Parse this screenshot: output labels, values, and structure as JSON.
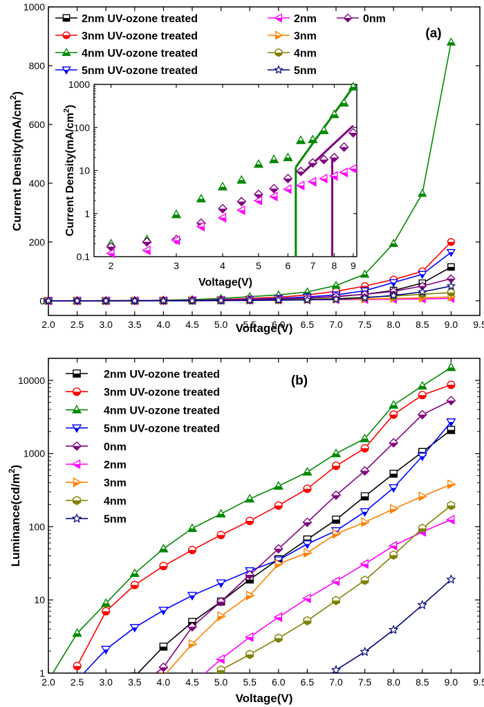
{
  "chart_data": [
    {
      "type": "line",
      "panel_label": "(a)",
      "xlabel": "Voltage(V)",
      "ylabel": "Current Density(mA/cm²)",
      "xlim": [
        2.0,
        9.5
      ],
      "ylim": [
        -50,
        1000
      ],
      "xticks": [
        "2.0",
        "2.5",
        "3.0",
        "3.5",
        "4.0",
        "4.5",
        "5.0",
        "5.5",
        "6.0",
        "6.5",
        "7.0",
        "7.5",
        "8.0",
        "8.5",
        "9.0",
        "9.5"
      ],
      "yticks": [
        "0",
        "200",
        "400",
        "600",
        "800",
        "1000"
      ],
      "grid": false,
      "legend_position": "top",
      "x": [
        2.0,
        2.5,
        3.0,
        3.5,
        4.0,
        4.5,
        5.0,
        5.5,
        6.0,
        6.5,
        7.0,
        7.5,
        8.0,
        8.5,
        9.0
      ],
      "series": [
        {
          "name": "2nm UV-ozone treated",
          "color": "#000000",
          "marker": "square-half",
          "values": [
            0,
            0,
            0,
            0,
            0.3,
            0.8,
            1.5,
            3,
            5,
            9,
            14,
            22,
            35,
            60,
            115
          ]
        },
        {
          "name": "3nm UV-ozone treated",
          "color": "#ff0000",
          "marker": "circle-half",
          "values": [
            0,
            0,
            0,
            0.3,
            1,
            2,
            4,
            8,
            12,
            20,
            32,
            50,
            72,
            100,
            200
          ]
        },
        {
          "name": "4nm UV-ozone treated",
          "color": "#008800",
          "marker": "triangle-up-half",
          "values": [
            0,
            0,
            0.1,
            0.5,
            2,
            4,
            8,
            14,
            20,
            30,
            52,
            90,
            195,
            365,
            880
          ]
        },
        {
          "name": "5nm UV-ozone treated",
          "color": "#0000ff",
          "marker": "triangle-down-half",
          "values": [
            0,
            0,
            0,
            0.2,
            0.6,
            1.5,
            3,
            5,
            8,
            13,
            20,
            34,
            62,
            90,
            165
          ]
        },
        {
          "name": "2nm",
          "color": "#ff00ff",
          "marker": "triangle-left-half",
          "values": [
            0,
            0,
            0,
            0.2,
            0.6,
            1,
            1.5,
            2,
            3,
            3.5,
            4,
            4.5,
            5,
            6,
            8
          ]
        },
        {
          "name": "3nm",
          "color": "#ff8000",
          "marker": "triangle-right-half",
          "values": [
            0,
            0,
            0,
            0,
            0.5,
            1,
            1.5,
            2,
            3,
            4,
            5,
            6,
            8,
            10,
            13
          ]
        },
        {
          "name": "4nm",
          "color": "#808000",
          "marker": "hexagon-half",
          "values": [
            0,
            0,
            0,
            0,
            0.2,
            0.5,
            1,
            2,
            3,
            5,
            8,
            12,
            16,
            22,
            28
          ]
        },
        {
          "name": "0nm",
          "color": "#800080",
          "marker": "diamond-half",
          "values": [
            0,
            0,
            0,
            0.3,
            0.8,
            1.5,
            2.5,
            4,
            6,
            9,
            15,
            22,
            32,
            50,
            75
          ]
        },
        {
          "name": "5nm",
          "color": "#000080",
          "marker": "star",
          "values": [
            0,
            0,
            0,
            0,
            0,
            0,
            0.5,
            1,
            2,
            3,
            5,
            10,
            18,
            30,
            50
          ]
        }
      ],
      "inset": {
        "xlabel": "Voltage(V)",
        "ylabel": "Current Density(mA/cm²)",
        "x_scale": "log",
        "y_scale": "log",
        "xlim": [
          1.8,
          9.2
        ],
        "ylim": [
          0.1,
          1000
        ],
        "xticks": [
          "2",
          "3",
          "4",
          "5",
          "6",
          "7",
          "8",
          "9"
        ],
        "yticks": [
          "0.1",
          "1",
          "10",
          "100",
          "1000"
        ],
        "series": [
          {
            "name": "4nm UV-ozone treated",
            "color": "#008800",
            "marker": "triangle-up-half",
            "x": [
              2.0,
              2.5,
              3.0,
              3.5,
              4.0,
              4.5,
              5.0,
              5.5,
              6.0,
              6.5,
              7.0,
              7.5,
              8.0,
              8.5,
              9.0
            ],
            "values": [
              0.2,
              0.25,
              0.95,
              2.2,
              4.2,
              6.0,
              14,
              18,
              20,
              50,
              52,
              85,
              200,
              370,
              880
            ]
          },
          {
            "name": "0nm",
            "color": "#800080",
            "marker": "diamond-half",
            "x": [
              2.0,
              2.5,
              3.0,
              3.5,
              4.0,
              4.5,
              5.0,
              5.5,
              6.0,
              6.5,
              7.0,
              7.5,
              8.0,
              8.5,
              9.0
            ],
            "values": [
              0.17,
              0.22,
              0.25,
              0.6,
              1.3,
              1.9,
              2.8,
              3.8,
              6.5,
              9.5,
              15,
              18,
              20,
              35,
              75
            ]
          },
          {
            "name": "2nm",
            "color": "#ff00ff",
            "marker": "triangle-left-half",
            "x": [
              2.0,
              2.5,
              3.0,
              3.5,
              4.0,
              4.5,
              5.0,
              5.5,
              6.0,
              6.5,
              7.0,
              7.5,
              8.0,
              8.5,
              9.0
            ],
            "values": [
              0.12,
              0.14,
              0.24,
              0.5,
              0.8,
              1.2,
              2.0,
              2.5,
              3.7,
              4.5,
              5.5,
              6.5,
              7.5,
              9,
              11
            ]
          }
        ],
        "fit_lines": [
          {
            "color": "#008800",
            "x": [
              6.3,
              9.1
            ],
            "values": [
              12,
              1000
            ]
          },
          {
            "color": "#800080",
            "x": [
              6.5,
              9.0
            ],
            "values": [
              8,
              110
            ]
          }
        ],
        "drop_lines": [
          {
            "color": "#008800",
            "x": 6.3
          },
          {
            "color": "#800080",
            "x": 7.9
          }
        ]
      }
    },
    {
      "type": "line",
      "panel_label": "(b)",
      "xlabel": "Voltage(V)",
      "ylabel": "Luminance(cd/m²)",
      "y_scale": "log",
      "xlim": [
        2.0,
        9.5
      ],
      "ylim": [
        1,
        20000
      ],
      "xticks": [
        "2.0",
        "2.5",
        "3.0",
        "3.5",
        "4.0",
        "4.5",
        "5.0",
        "5.5",
        "6.0",
        "6.5",
        "7.0",
        "7.5",
        "8.0",
        "8.5",
        "9.0",
        "9.5"
      ],
      "yticks": [
        "1",
        "10",
        "100",
        "1000",
        "10000"
      ],
      "grid": false,
      "legend_position": "top-left",
      "series": [
        {
          "name": "2nm UV-ozone treated",
          "color": "#000000",
          "marker": "square-half",
          "x": [
            3.5,
            4.0,
            4.5,
            5.0,
            5.5,
            6.0,
            6.5,
            7.0,
            7.5,
            8.0,
            8.5,
            9.0
          ],
          "values": [
            0.9,
            2.3,
            5,
            9.5,
            19,
            36,
            67,
            125,
            260,
            530,
            1050,
            2100
          ]
        },
        {
          "name": "3nm UV-ozone treated",
          "color": "#ff0000",
          "marker": "circle-half",
          "x": [
            2.5,
            3.0,
            3.5,
            4.0,
            4.5,
            5.0,
            5.5,
            6.0,
            6.5,
            7.0,
            7.5,
            8.0,
            8.5,
            9.0
          ],
          "values": [
            1.25,
            7,
            16,
            29,
            48,
            77,
            120,
            195,
            330,
            680,
            1180,
            3400,
            6300,
            8700
          ]
        },
        {
          "name": "4nm UV-ozone treated",
          "color": "#008800",
          "marker": "triangle-up-half",
          "x": [
            2.0,
            2.5,
            3.0,
            3.5,
            4.0,
            4.5,
            5.0,
            5.5,
            6.0,
            6.5,
            7.0,
            7.5,
            8.0,
            8.5,
            9.0
          ],
          "values": [
            0.8,
            3.5,
            9,
            23,
            50,
            95,
            150,
            240,
            360,
            560,
            1000,
            1600,
            4600,
            8400,
            15000
          ]
        },
        {
          "name": "5nm UV-ozone treated",
          "color": "#0000ff",
          "marker": "triangle-down-half",
          "x": [
            2.5,
            3.0,
            3.5,
            4.0,
            4.5,
            5.0,
            5.5,
            6.0,
            6.5,
            7.0,
            7.5,
            8.0,
            8.5,
            9.0
          ],
          "values": [
            0.8,
            2.1,
            4.2,
            7.2,
            11.5,
            17,
            25,
            35,
            58,
            88,
            160,
            340,
            920,
            2700
          ]
        },
        {
          "name": "0nm",
          "color": "#800080",
          "marker": "diamond-half",
          "x": [
            3.5,
            4.0,
            4.5,
            5.0,
            5.5,
            6.0,
            6.5,
            7.0,
            7.5,
            8.0,
            8.5,
            9.0
          ],
          "values": [
            0.6,
            1.2,
            4.3,
            9.5,
            22,
            50,
            115,
            270,
            580,
            1400,
            3400,
            5300
          ]
        },
        {
          "name": "2nm",
          "color": "#ff00ff",
          "marker": "triangle-left-half",
          "x": [
            4.5,
            5.0,
            5.5,
            6.0,
            6.5,
            7.0,
            7.5,
            8.0,
            8.5,
            9.0
          ],
          "values": [
            0.7,
            1.55,
            3.1,
            5.8,
            10.5,
            18,
            31,
            55,
            85,
            125
          ]
        },
        {
          "name": "3nm",
          "color": "#ff8000",
          "marker": "triangle-right-half",
          "x": [
            4.0,
            4.5,
            5.0,
            5.5,
            6.0,
            6.5,
            7.0,
            7.5,
            8.0,
            8.5,
            9.0
          ],
          "values": [
            0.9,
            2.5,
            6,
            11.5,
            31,
            44,
            80,
            115,
            175,
            260,
            380
          ]
        },
        {
          "name": "4nm",
          "color": "#808000",
          "marker": "hexagon-half",
          "x": [
            4.5,
            5.0,
            5.5,
            6.0,
            6.5,
            7.0,
            7.5,
            8.0,
            8.5,
            9.0
          ],
          "values": [
            0.6,
            1.1,
            1.8,
            3.0,
            5.2,
            9.8,
            18.5,
            41,
            95,
            195
          ]
        },
        {
          "name": "5nm",
          "color": "#000080",
          "marker": "star",
          "x": [
            6.5,
            7.0,
            7.5,
            8.0,
            8.5,
            9.0
          ],
          "values": [
            0.55,
            1.1,
            1.95,
            3.9,
            8.5,
            19
          ]
        }
      ]
    }
  ]
}
